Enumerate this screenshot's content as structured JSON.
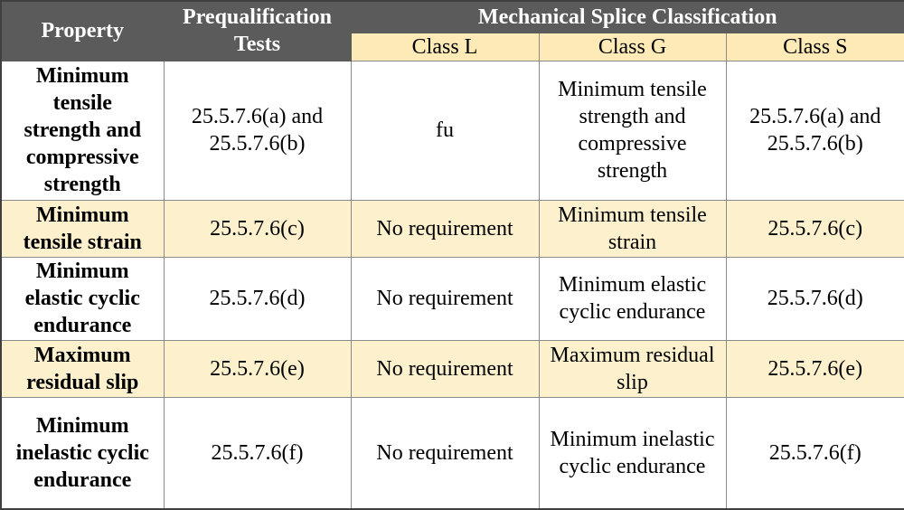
{
  "header": {
    "property": "Property",
    "prequalification": "Prequalification Tests",
    "classification": "Mechanical Splice Classification",
    "classes": [
      "Class L",
      "Class G",
      "Class S"
    ]
  },
  "table": {
    "rows": [
      [
        "Minimum tensile strength and compressive strength",
        "25.5.7.6(a) and 25.5.7.6(b)",
        "fu",
        "Minimum tensile strength and compressive strength",
        "25.5.7.6(a) and 25.5.7.6(b)"
      ],
      [
        "Minimum tensile strain",
        "25.5.7.6(c)",
        "No requirement",
        "Minimum tensile strain",
        "25.5.7.6(c)"
      ],
      [
        "Minimum elastic cyclic endurance",
        "25.5.7.6(d)",
        "No requirement",
        "Minimum elastic cyclic endurance",
        "25.5.7.6(d)"
      ],
      [
        "Maximum residual slip",
        "25.5.7.6(e)",
        "No requirement",
        "Maximum residual slip",
        "25.5.7.6(e)"
      ],
      [
        "Minimum inelastic cyclic endurance",
        "25.5.7.6(f)",
        "No requirement",
        "Minimum inelastic cyclic endurance",
        "25.5.7.6(f)"
      ]
    ]
  }
}
